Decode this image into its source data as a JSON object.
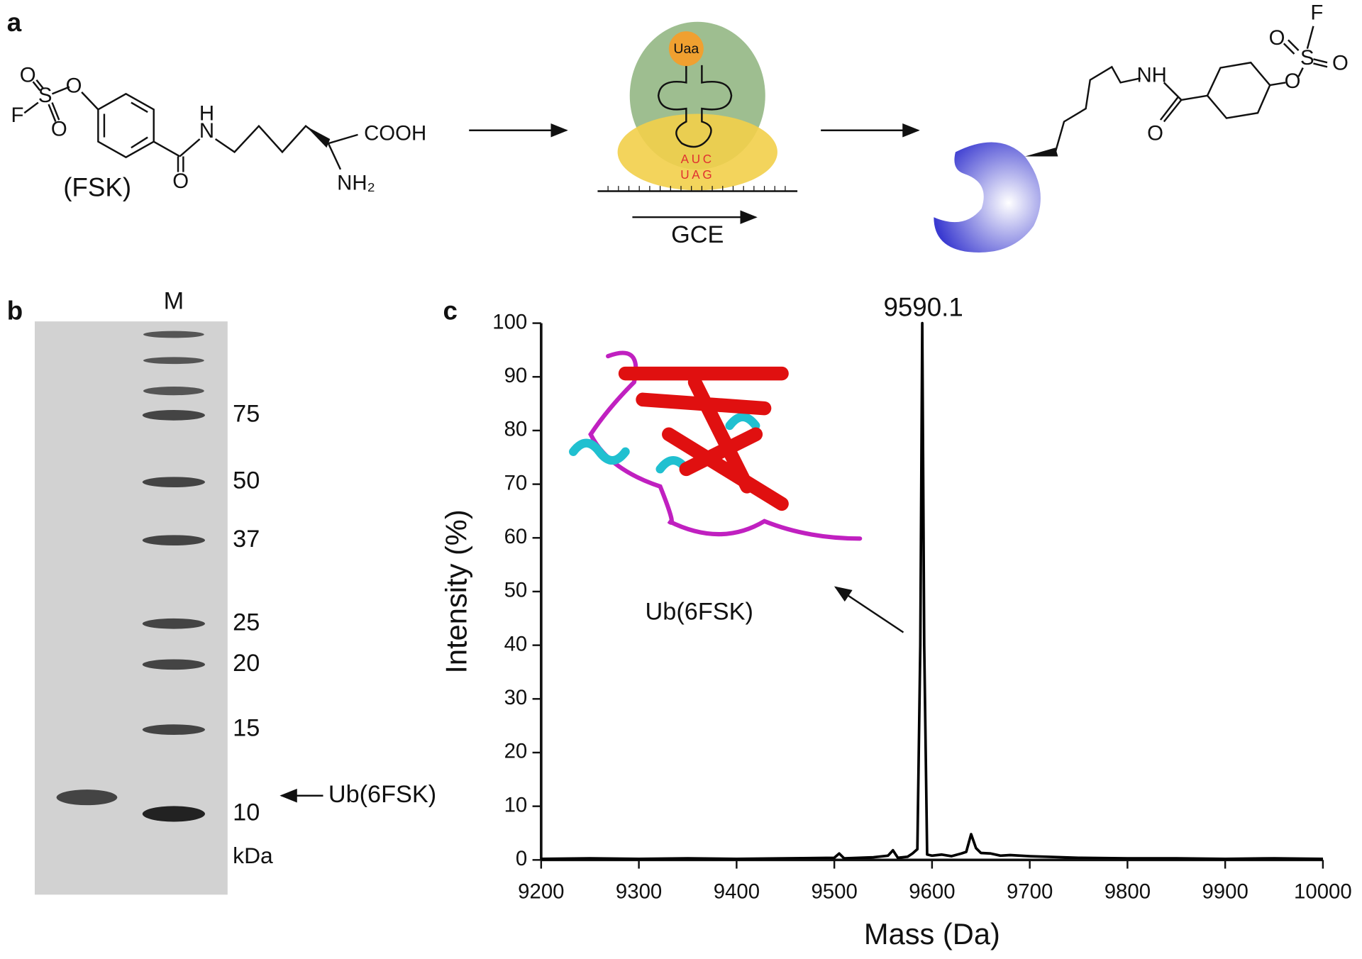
{
  "panels": {
    "a": {
      "label": "a",
      "fsk_label": "(FSK)",
      "atoms": [
        "O",
        "S",
        "F",
        "O",
        "O",
        "H",
        "N",
        "O",
        "COOH",
        "NH₂"
      ],
      "uaa": "Uaa",
      "trna_anticodon": "AUC",
      "mrna_codon": "UAG",
      "gce": "GCE",
      "product_atoms": [
        "NH",
        "O",
        "O",
        "S",
        "F",
        "O",
        "O"
      ]
    },
    "b": {
      "label": "b",
      "lane": "M",
      "markers": [
        75,
        50,
        37,
        25,
        20,
        15,
        10
      ],
      "unit": "kDa",
      "band_label": "Ub(6FSK)"
    },
    "c": {
      "label": "c",
      "inset_label": "Ub(6FSK)"
    }
  },
  "chart_data": {
    "type": "line",
    "xlabel": "Mass (Da)",
    "ylabel": "Intensity (%)",
    "peak_label": "9590.1",
    "x": [
      9200,
      9250,
      9300,
      9350,
      9400,
      9450,
      9500,
      9505,
      9510,
      9540,
      9555,
      9560,
      9565,
      9575,
      9580,
      9585,
      9588,
      9590,
      9592,
      9595,
      9600,
      9610,
      9620,
      9630,
      9635,
      9640,
      9645,
      9650,
      9660,
      9670,
      9680,
      9700,
      9750,
      9800,
      9850,
      9900,
      9950,
      10000
    ],
    "series": [
      {
        "color": "#000000",
        "values": [
          0.2,
          0.3,
          0.2,
          0.3,
          0.2,
          0.3,
          0.4,
          1.2,
          0.3,
          0.5,
          0.8,
          1.8,
          0.4,
          0.6,
          1.2,
          2,
          40,
          100,
          40,
          1,
          0.8,
          1,
          0.7,
          1.2,
          1.5,
          4.8,
          2.2,
          1.3,
          1.2,
          0.8,
          0.9,
          0.7,
          0.4,
          0.3,
          0.3,
          0.2,
          0.3,
          0.2
        ]
      }
    ],
    "xlim": [
      9200,
      10000
    ],
    "xticks": [
      9200,
      9300,
      9400,
      9500,
      9600,
      9700,
      9800,
      9900,
      10000
    ],
    "ylim": [
      0,
      100
    ],
    "yticks": [
      0,
      10,
      20,
      30,
      40,
      50,
      60,
      70,
      80,
      90,
      100
    ]
  }
}
